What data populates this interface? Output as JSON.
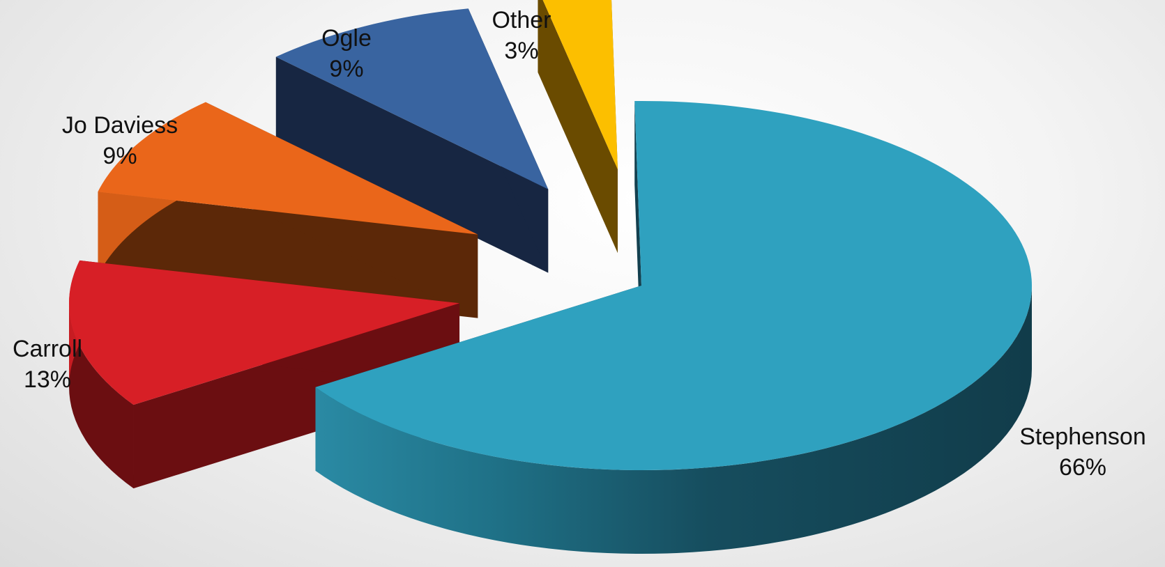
{
  "chart_data": {
    "type": "pie",
    "style": "3d-exploded",
    "title": "",
    "slices": [
      {
        "name": "Stephenson",
        "value": 66,
        "label": "66%",
        "color": "#2fa1bf",
        "side_color": "#13404f"
      },
      {
        "name": "Carroll",
        "value": 13,
        "label": "13%",
        "color": "#d71f26",
        "side_color": "#6b0e11"
      },
      {
        "name": "Jo Daviess",
        "value": 9,
        "label": "9%",
        "color": "#ea661a",
        "side_color": "#5c2808"
      },
      {
        "name": "Ogle",
        "value": 9,
        "label": "9%",
        "color": "#3964a0",
        "side_color": "#172642"
      },
      {
        "name": "Other",
        "value": 3,
        "label": "3%",
        "color": "#fcbf00",
        "side_color": "#6a4b00"
      }
    ],
    "legend": "none",
    "data_labels": "outside"
  }
}
